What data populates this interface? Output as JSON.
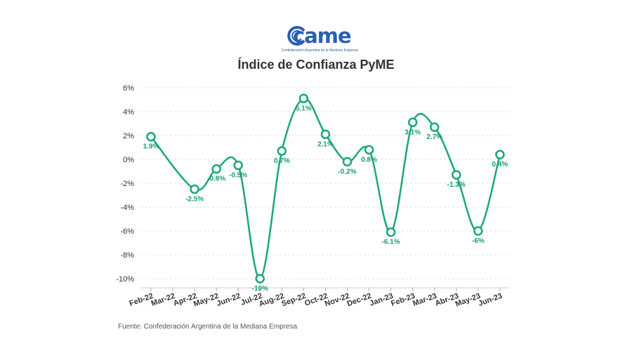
{
  "logo": {
    "text": "came",
    "tagline": "Confederación Argentina de la Mediana Empresa"
  },
  "footer": {
    "source": "Fuente: Confederación Argentina de la Mediana Empresa"
  },
  "colors": {
    "line": "#1aa871",
    "label": "#1a9d69",
    "grid": "#e0e0e0",
    "axis_text": "#333333",
    "logo": "#2a5fb0"
  },
  "chart_data": {
    "type": "line",
    "title": "Índice de Confianza PyME",
    "xlabel": "",
    "ylabel": "",
    "categories": [
      "Feb-22",
      "Mar-22",
      "Apr-22",
      "May-22",
      "Jun-22",
      "Jul-22",
      "Aug-22",
      "Sep-22",
      "Oct-22",
      "Nov-22",
      "Dec-22",
      "Jan-23",
      "Feb-23",
      "Mar-23",
      "Abr-23",
      "May-23",
      "Jun-23"
    ],
    "points": [
      {
        "x": "Feb-22",
        "y": 1.9,
        "label": "1.9%"
      },
      {
        "x": "Apr-22",
        "y": -2.5,
        "label": "-2.5%"
      },
      {
        "x": "May-22",
        "y": -0.8,
        "label": "-0.8%"
      },
      {
        "x": "Jun-22",
        "y": -0.5,
        "label": "-0.5%"
      },
      {
        "x": "Jul-22",
        "y": -10,
        "label": "-10%"
      },
      {
        "x": "Aug-22",
        "y": 0.7,
        "label": "0.7%"
      },
      {
        "x": "Sep-22",
        "y": 5.1,
        "label": "5.1%"
      },
      {
        "x": "Oct-22",
        "y": 2.1,
        "label": "2.1%"
      },
      {
        "x": "Nov-22",
        "y": -0.2,
        "label": "-0.2%"
      },
      {
        "x": "Dec-22",
        "y": 0.8,
        "label": "0.8%"
      },
      {
        "x": "Jan-23",
        "y": -6.1,
        "label": "-6.1%"
      },
      {
        "x": "Feb-23",
        "y": 3.1,
        "label": "3.1%"
      },
      {
        "x": "Mar-23",
        "y": 2.7,
        "label": "2.7%"
      },
      {
        "x": "Abr-23",
        "y": -1.3,
        "label": "-1.3%"
      },
      {
        "x": "May-23",
        "y": -6,
        "label": "-6%"
      },
      {
        "x": "Jun-23",
        "y": 0.4,
        "label": "0.4%"
      }
    ],
    "yticks": [
      6,
      4,
      2,
      0,
      -2,
      -4,
      -6,
      -8,
      -10
    ],
    "ytick_labels": [
      "6%",
      "4%",
      "2%",
      "0%",
      "-2%",
      "-4%",
      "-6%",
      "-8%",
      "-10%"
    ],
    "ylim": [
      -11,
      6.5
    ],
    "grid": true,
    "legend": "none",
    "smooth": true
  }
}
